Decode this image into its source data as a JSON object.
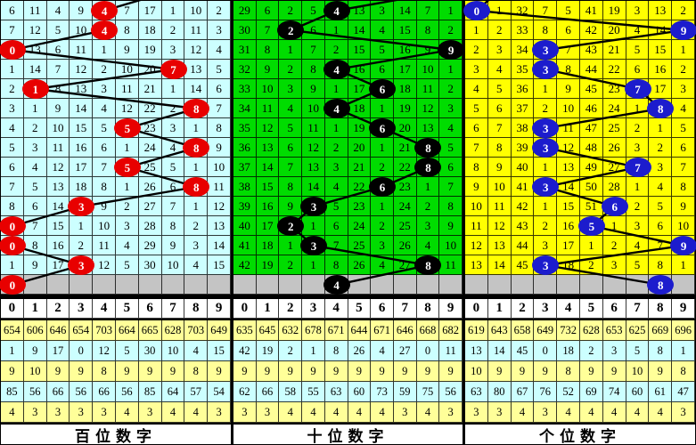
{
  "digit_header": [
    "0",
    "1",
    "2",
    "3",
    "4",
    "5",
    "6",
    "7",
    "8",
    "9"
  ],
  "colors": {
    "pending_row_bg": "#c4c4c4",
    "stat_row_odd": "#ffff99",
    "stat_row_even": "#ccffff",
    "header_bg": "#ffffff",
    "line_color": "#000000",
    "grid_line": "#000000",
    "ball_text": "#ffffff"
  },
  "panels": [
    {
      "name": "hundreds",
      "footer": "百位数字",
      "bg": "#ccffff",
      "ball_color": "#e80000",
      "stub_col": 7,
      "pending_ball": 0,
      "rows": [
        {
          "cells": [
            "6",
            "11",
            "4",
            "9",
            "",
            "7",
            "17",
            "1",
            "10",
            "2"
          ],
          "ball": 4
        },
        {
          "cells": [
            "7",
            "12",
            "5",
            "10",
            "",
            "8",
            "18",
            "2",
            "11",
            "3"
          ],
          "ball": 4
        },
        {
          "cells": [
            "",
            "13",
            "6",
            "11",
            "1",
            "9",
            "19",
            "3",
            "12",
            "4"
          ],
          "ball": 0
        },
        {
          "cells": [
            "1",
            "14",
            "7",
            "12",
            "2",
            "10",
            "20",
            "",
            "13",
            "5"
          ],
          "ball": 7
        },
        {
          "cells": [
            "2",
            "",
            "8",
            "13",
            "3",
            "11",
            "21",
            "1",
            "14",
            "6"
          ],
          "ball": 1
        },
        {
          "cells": [
            "3",
            "1",
            "9",
            "14",
            "4",
            "12",
            "22",
            "2",
            "",
            "7"
          ],
          "ball": 8
        },
        {
          "cells": [
            "4",
            "2",
            "10",
            "15",
            "5",
            "",
            "23",
            "3",
            "1",
            "8"
          ],
          "ball": 5
        },
        {
          "cells": [
            "5",
            "3",
            "11",
            "16",
            "6",
            "1",
            "24",
            "4",
            "",
            "9"
          ],
          "ball": 8
        },
        {
          "cells": [
            "6",
            "4",
            "12",
            "17",
            "7",
            "",
            "25",
            "5",
            "1",
            "10"
          ],
          "ball": 5
        },
        {
          "cells": [
            "7",
            "5",
            "13",
            "18",
            "8",
            "1",
            "26",
            "6",
            "",
            "11"
          ],
          "ball": 8
        },
        {
          "cells": [
            "8",
            "6",
            "14",
            "",
            "9",
            "2",
            "27",
            "7",
            "1",
            "12"
          ],
          "ball": 3
        },
        {
          "cells": [
            "",
            "7",
            "15",
            "1",
            "10",
            "3",
            "28",
            "8",
            "2",
            "13"
          ],
          "ball": 0
        },
        {
          "cells": [
            "",
            "8",
            "16",
            "2",
            "11",
            "4",
            "29",
            "9",
            "3",
            "14"
          ],
          "ball": 0
        },
        {
          "cells": [
            "1",
            "9",
            "17",
            "",
            "12",
            "5",
            "30",
            "10",
            "4",
            "15"
          ],
          "ball": 3
        }
      ],
      "stats": [
        [
          "654",
          "606",
          "646",
          "654",
          "703",
          "664",
          "665",
          "628",
          "703",
          "649"
        ],
        [
          "1",
          "9",
          "17",
          "0",
          "12",
          "5",
          "30",
          "10",
          "4",
          "15"
        ],
        [
          "9",
          "10",
          "9",
          "9",
          "8",
          "9",
          "9",
          "9",
          "8",
          "9"
        ],
        [
          "85",
          "56",
          "66",
          "56",
          "66",
          "56",
          "85",
          "64",
          "57",
          "54"
        ],
        [
          "4",
          "3",
          "3",
          "3",
          "3",
          "4",
          "3",
          "4",
          "4",
          "3"
        ]
      ]
    },
    {
      "name": "tens",
      "footer": "十位数字",
      "bg": "#00dc00",
      "ball_color": "#000000",
      "stub_col": 9,
      "pending_ball": 4,
      "rows": [
        {
          "cells": [
            "29",
            "6",
            "2",
            "5",
            "",
            "13",
            "3",
            "14",
            "7",
            "1"
          ],
          "ball": 4
        },
        {
          "cells": [
            "30",
            "7",
            "",
            "6",
            "1",
            "14",
            "4",
            "15",
            "8",
            "2"
          ],
          "ball": 2
        },
        {
          "cells": [
            "31",
            "8",
            "1",
            "7",
            "2",
            "15",
            "5",
            "16",
            "9",
            ""
          ],
          "ball": 9
        },
        {
          "cells": [
            "32",
            "9",
            "2",
            "8",
            "",
            "16",
            "6",
            "17",
            "10",
            "1"
          ],
          "ball": 4
        },
        {
          "cells": [
            "33",
            "10",
            "3",
            "9",
            "1",
            "17",
            "",
            "18",
            "11",
            "2"
          ],
          "ball": 6
        },
        {
          "cells": [
            "34",
            "11",
            "4",
            "10",
            "",
            "18",
            "1",
            "19",
            "12",
            "3"
          ],
          "ball": 4
        },
        {
          "cells": [
            "35",
            "12",
            "5",
            "11",
            "1",
            "19",
            "",
            "20",
            "13",
            "4"
          ],
          "ball": 6
        },
        {
          "cells": [
            "36",
            "13",
            "6",
            "12",
            "2",
            "20",
            "1",
            "21",
            "",
            "5"
          ],
          "ball": 8
        },
        {
          "cells": [
            "37",
            "14",
            "7",
            "13",
            "3",
            "21",
            "2",
            "22",
            "",
            "6"
          ],
          "ball": 8
        },
        {
          "cells": [
            "38",
            "15",
            "8",
            "14",
            "4",
            "22",
            "",
            "23",
            "1",
            "7"
          ],
          "ball": 6
        },
        {
          "cells": [
            "39",
            "16",
            "9",
            "",
            "5",
            "23",
            "1",
            "24",
            "2",
            "8"
          ],
          "ball": 3
        },
        {
          "cells": [
            "40",
            "17",
            "",
            "1",
            "6",
            "24",
            "2",
            "25",
            "3",
            "9"
          ],
          "ball": 2
        },
        {
          "cells": [
            "41",
            "18",
            "1",
            "",
            "7",
            "25",
            "3",
            "26",
            "4",
            "10"
          ],
          "ball": 3
        },
        {
          "cells": [
            "42",
            "19",
            "2",
            "1",
            "8",
            "26",
            "4",
            "27",
            "",
            "11"
          ],
          "ball": 8
        }
      ],
      "stats": [
        [
          "635",
          "645",
          "632",
          "678",
          "671",
          "644",
          "671",
          "646",
          "668",
          "682"
        ],
        [
          "42",
          "19",
          "2",
          "1",
          "8",
          "26",
          "4",
          "27",
          "0",
          "11"
        ],
        [
          "9",
          "9",
          "9",
          "9",
          "9",
          "9",
          "9",
          "9",
          "9",
          "9"
        ],
        [
          "62",
          "66",
          "58",
          "55",
          "63",
          "60",
          "73",
          "59",
          "75",
          "56"
        ],
        [
          "3",
          "3",
          "4",
          "4",
          "4",
          "4",
          "4",
          "3",
          "4",
          "3"
        ]
      ]
    },
    {
      "name": "units",
      "footer": "个位数字",
      "bg": "#ffff00",
      "ball_color": "#1c1ccd",
      "stub_col": 1,
      "pending_ball": 8,
      "rows": [
        {
          "cells": [
            "",
            "1",
            "32",
            "7",
            "5",
            "41",
            "19",
            "3",
            "13",
            "2"
          ],
          "ball": 0
        },
        {
          "cells": [
            "1",
            "2",
            "33",
            "8",
            "6",
            "42",
            "20",
            "4",
            "14",
            ""
          ],
          "ball": 9
        },
        {
          "cells": [
            "2",
            "3",
            "34",
            "",
            "7",
            "43",
            "21",
            "5",
            "15",
            "1"
          ],
          "ball": 3
        },
        {
          "cells": [
            "3",
            "4",
            "35",
            "",
            "8",
            "44",
            "22",
            "6",
            "16",
            "2"
          ],
          "ball": 3
        },
        {
          "cells": [
            "4",
            "5",
            "36",
            "1",
            "9",
            "45",
            "23",
            "",
            "17",
            "3"
          ],
          "ball": 7
        },
        {
          "cells": [
            "5",
            "6",
            "37",
            "2",
            "10",
            "46",
            "24",
            "1",
            "",
            "4"
          ],
          "ball": 8
        },
        {
          "cells": [
            "6",
            "7",
            "38",
            "",
            "11",
            "47",
            "25",
            "2",
            "1",
            "5"
          ],
          "ball": 3
        },
        {
          "cells": [
            "7",
            "8",
            "39",
            "",
            "12",
            "48",
            "26",
            "3",
            "2",
            "6"
          ],
          "ball": 3
        },
        {
          "cells": [
            "8",
            "9",
            "40",
            "1",
            "13",
            "49",
            "27",
            "",
            "3",
            "7"
          ],
          "ball": 7
        },
        {
          "cells": [
            "9",
            "10",
            "41",
            "",
            "14",
            "50",
            "28",
            "1",
            "4",
            "8"
          ],
          "ball": 3
        },
        {
          "cells": [
            "10",
            "11",
            "42",
            "1",
            "15",
            "51",
            "",
            "2",
            "5",
            "9"
          ],
          "ball": 6
        },
        {
          "cells": [
            "11",
            "12",
            "43",
            "2",
            "16",
            "",
            "1",
            "3",
            "6",
            "10"
          ],
          "ball": 5
        },
        {
          "cells": [
            "12",
            "13",
            "44",
            "3",
            "17",
            "1",
            "2",
            "4",
            "7",
            ""
          ],
          "ball": 9
        },
        {
          "cells": [
            "13",
            "14",
            "45",
            "",
            "18",
            "2",
            "3",
            "5",
            "8",
            "1"
          ],
          "ball": 3
        }
      ],
      "stats": [
        [
          "619",
          "643",
          "658",
          "649",
          "732",
          "628",
          "653",
          "625",
          "669",
          "696"
        ],
        [
          "13",
          "14",
          "45",
          "0",
          "18",
          "2",
          "3",
          "5",
          "8",
          "1"
        ],
        [
          "10",
          "9",
          "9",
          "9",
          "8",
          "9",
          "9",
          "10",
          "9",
          "8"
        ],
        [
          "63",
          "80",
          "67",
          "76",
          "52",
          "69",
          "74",
          "60",
          "61",
          "47"
        ],
        [
          "3",
          "3",
          "4",
          "3",
          "4",
          "4",
          "4",
          "4",
          "4",
          "3"
        ]
      ]
    }
  ],
  "chart_data": {
    "type": "table",
    "description": "3-digit lottery trend chart: per-draw miss counts for digits 0-9 in hundreds/tens/units positions; ball marks the drawn digit; gray row is the next pending draw marker; bottom tables are per-digit statistics.",
    "hundreds_drawn_sequence": [
      4,
      4,
      0,
      7,
      1,
      8,
      5,
      8,
      5,
      8,
      3,
      0,
      0,
      3
    ],
    "tens_drawn_sequence": [
      4,
      2,
      9,
      4,
      6,
      4,
      6,
      8,
      8,
      6,
      3,
      2,
      3,
      8
    ],
    "units_drawn_sequence": [
      0,
      9,
      3,
      3,
      7,
      8,
      3,
      3,
      7,
      3,
      6,
      5,
      9,
      3
    ],
    "pending_row_balls": {
      "hundreds": 0,
      "tens": 4,
      "units": 8
    },
    "panel_titles": [
      "百位数字",
      "十位数字",
      "个位数字"
    ],
    "digit_columns": [
      0,
      1,
      2,
      3,
      4,
      5,
      6,
      7,
      8,
      9
    ]
  }
}
